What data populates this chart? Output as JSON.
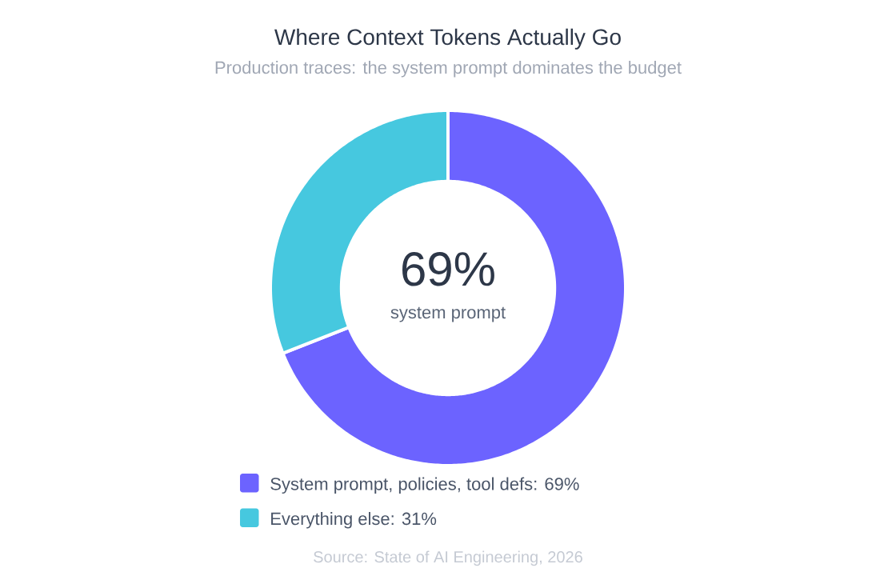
{
  "chart_data": {
    "type": "donut",
    "title": "Where Context Tokens Actually Go",
    "subtitle": "Production traces: the system prompt dominates the budget",
    "categories": [
      "System prompt, policies, tool defs: 69%",
      "Everything else: 31%"
    ],
    "values": [
      69,
      31
    ],
    "colors": [
      "#6c63ff",
      "#46c8df"
    ],
    "legend": "bottom",
    "annotations": [
      "69%",
      "system prompt",
      "Source: State of AI Engineering, 2026"
    ]
  }
}
